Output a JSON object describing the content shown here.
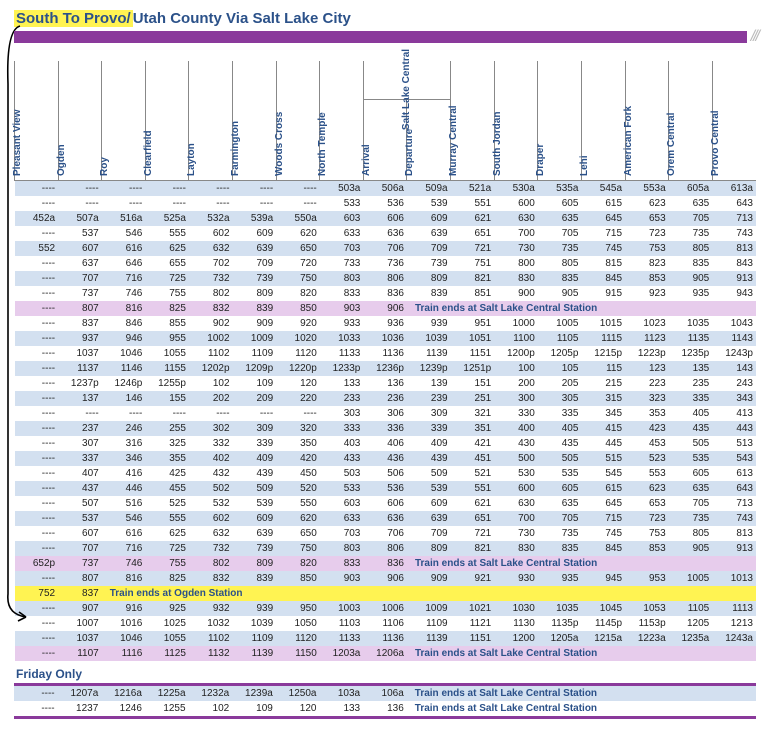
{
  "title_hl": "South To Provo/",
  "title_rest": "Utah County Via Salt Lake City",
  "stations": [
    "Pleasant View",
    "Ogden",
    "Roy",
    "Clearfield",
    "Layton",
    "Farmington",
    "Woods Cross",
    "North Temple",
    "Arrival",
    "Departure",
    "Murray Central",
    "South Jordan",
    "Draper",
    "Lehi",
    "American Fork",
    "Orem Central",
    "Provo Central"
  ],
  "group_label": "Salt Lake Central",
  "note_central": "Train ends at Salt Lake Central Station",
  "note_ogden": "Train ends at Ogden Station",
  "friday_label": "Friday Only",
  "rows": [
    {
      "c": [
        "----",
        "----",
        "----",
        "----",
        "----",
        "----",
        "----",
        "503a",
        "506a",
        "509a",
        "521a",
        "530a",
        "535a",
        "545a",
        "553a",
        "605a",
        "613a"
      ]
    },
    {
      "c": [
        "----",
        "----",
        "----",
        "----",
        "----",
        "----",
        "----",
        "533",
        "536",
        "539",
        "551",
        "600",
        "605",
        "615",
        "623",
        "635",
        "643"
      ]
    },
    {
      "c": [
        "452a",
        "507a",
        "516a",
        "525a",
        "532a",
        "539a",
        "550a",
        "603",
        "606",
        "609",
        "621",
        "630",
        "635",
        "645",
        "653",
        "705",
        "713"
      ]
    },
    {
      "c": [
        "----",
        "537",
        "546",
        "555",
        "602",
        "609",
        "620",
        "633",
        "636",
        "639",
        "651",
        "700",
        "705",
        "715",
        "723",
        "735",
        "743"
      ]
    },
    {
      "c": [
        "552",
        "607",
        "616",
        "625",
        "632",
        "639",
        "650",
        "703",
        "706",
        "709",
        "721",
        "730",
        "735",
        "745",
        "753",
        "805",
        "813"
      ]
    },
    {
      "c": [
        "----",
        "637",
        "646",
        "655",
        "702",
        "709",
        "720",
        "733",
        "736",
        "739",
        "751",
        "800",
        "805",
        "815",
        "823",
        "835",
        "843"
      ]
    },
    {
      "c": [
        "----",
        "707",
        "716",
        "725",
        "732",
        "739",
        "750",
        "803",
        "806",
        "809",
        "821",
        "830",
        "835",
        "845",
        "853",
        "905",
        "913"
      ]
    },
    {
      "c": [
        "----",
        "737",
        "746",
        "755",
        "802",
        "809",
        "820",
        "833",
        "836",
        "839",
        "851",
        "900",
        "905",
        "915",
        "923",
        "935",
        "943"
      ]
    },
    {
      "c": [
        "----",
        "807",
        "816",
        "825",
        "832",
        "839",
        "850",
        "903",
        "906"
      ],
      "note": "central",
      "cls": "purple"
    },
    {
      "c": [
        "----",
        "837",
        "846",
        "855",
        "902",
        "909",
        "920",
        "933",
        "936",
        "939",
        "951",
        "1000",
        "1005",
        "1015",
        "1023",
        "1035",
        "1043"
      ]
    },
    {
      "c": [
        "----",
        "937",
        "946",
        "955",
        "1002",
        "1009",
        "1020",
        "1033",
        "1036",
        "1039",
        "1051",
        "1100",
        "1105",
        "1115",
        "1123",
        "1135",
        "1143"
      ]
    },
    {
      "c": [
        "----",
        "1037",
        "1046",
        "1055",
        "1102",
        "1109",
        "1120",
        "1133",
        "1136",
        "1139",
        "1151",
        "1200p",
        "1205p",
        "1215p",
        "1223p",
        "1235p",
        "1243p"
      ]
    },
    {
      "c": [
        "----",
        "1137",
        "1146",
        "1155",
        "1202p",
        "1209p",
        "1220p",
        "1233p",
        "1236p",
        "1239p",
        "1251p",
        "100",
        "105",
        "115",
        "123",
        "135",
        "143"
      ]
    },
    {
      "c": [
        "----",
        "1237p",
        "1246p",
        "1255p",
        "102",
        "109",
        "120",
        "133",
        "136",
        "139",
        "151",
        "200",
        "205",
        "215",
        "223",
        "235",
        "243"
      ]
    },
    {
      "c": [
        "----",
        "137",
        "146",
        "155",
        "202",
        "209",
        "220",
        "233",
        "236",
        "239",
        "251",
        "300",
        "305",
        "315",
        "323",
        "335",
        "343"
      ]
    },
    {
      "c": [
        "----",
        "----",
        "----",
        "----",
        "----",
        "----",
        "----",
        "303",
        "306",
        "309",
        "321",
        "330",
        "335",
        "345",
        "353",
        "405",
        "413"
      ]
    },
    {
      "c": [
        "----",
        "237",
        "246",
        "255",
        "302",
        "309",
        "320",
        "333",
        "336",
        "339",
        "351",
        "400",
        "405",
        "415",
        "423",
        "435",
        "443"
      ]
    },
    {
      "c": [
        "----",
        "307",
        "316",
        "325",
        "332",
        "339",
        "350",
        "403",
        "406",
        "409",
        "421",
        "430",
        "435",
        "445",
        "453",
        "505",
        "513"
      ]
    },
    {
      "c": [
        "----",
        "337",
        "346",
        "355",
        "402",
        "409",
        "420",
        "433",
        "436",
        "439",
        "451",
        "500",
        "505",
        "515",
        "523",
        "535",
        "543"
      ]
    },
    {
      "c": [
        "----",
        "407",
        "416",
        "425",
        "432",
        "439",
        "450",
        "503",
        "506",
        "509",
        "521",
        "530",
        "535",
        "545",
        "553",
        "605",
        "613"
      ]
    },
    {
      "c": [
        "----",
        "437",
        "446",
        "455",
        "502",
        "509",
        "520",
        "533",
        "536",
        "539",
        "551",
        "600",
        "605",
        "615",
        "623",
        "635",
        "643"
      ]
    },
    {
      "c": [
        "----",
        "507",
        "516",
        "525",
        "532",
        "539",
        "550",
        "603",
        "606",
        "609",
        "621",
        "630",
        "635",
        "645",
        "653",
        "705",
        "713"
      ]
    },
    {
      "c": [
        "----",
        "537",
        "546",
        "555",
        "602",
        "609",
        "620",
        "633",
        "636",
        "639",
        "651",
        "700",
        "705",
        "715",
        "723",
        "735",
        "743"
      ]
    },
    {
      "c": [
        "----",
        "607",
        "616",
        "625",
        "632",
        "639",
        "650",
        "703",
        "706",
        "709",
        "721",
        "730",
        "735",
        "745",
        "753",
        "805",
        "813"
      ]
    },
    {
      "c": [
        "----",
        "707",
        "716",
        "725",
        "732",
        "739",
        "750",
        "803",
        "806",
        "809",
        "821",
        "830",
        "835",
        "845",
        "853",
        "905",
        "913"
      ]
    },
    {
      "c": [
        "652p",
        "737",
        "746",
        "755",
        "802",
        "809",
        "820",
        "833",
        "836"
      ],
      "note": "central",
      "cls": "purple"
    },
    {
      "c": [
        "----",
        "807",
        "816",
        "825",
        "832",
        "839",
        "850",
        "903",
        "906",
        "909",
        "921",
        "930",
        "935",
        "945",
        "953",
        "1005",
        "1013"
      ]
    },
    {
      "c": [
        "752",
        "837"
      ],
      "note": "ogden",
      "cls": "yellow"
    },
    {
      "c": [
        "----",
        "907",
        "916",
        "925",
        "932",
        "939",
        "950",
        "1003",
        "1006",
        "1009",
        "1021",
        "1030",
        "1035",
        "1045",
        "1053",
        "1105",
        "1113"
      ]
    },
    {
      "c": [
        "----",
        "1007",
        "1016",
        "1025",
        "1032",
        "1039",
        "1050",
        "1103",
        "1106",
        "1109",
        "1121",
        "1130",
        "1135p",
        "1145p",
        "1153p",
        "1205",
        "1213"
      ]
    },
    {
      "c": [
        "----",
        "1037",
        "1046",
        "1055",
        "1102",
        "1109",
        "1120",
        "1133",
        "1136",
        "1139",
        "1151",
        "1200",
        "1205a",
        "1215a",
        "1223a",
        "1235a",
        "1243a"
      ]
    },
    {
      "c": [
        "----",
        "1107",
        "1116",
        "1125",
        "1132",
        "1139",
        "1150",
        "1203a",
        "1206a"
      ],
      "note": "central",
      "cls": "purple"
    }
  ],
  "friday_rows": [
    {
      "c": [
        "----",
        "1207a",
        "1216a",
        "1225a",
        "1232a",
        "1239a",
        "1250a",
        "103a",
        "106a"
      ],
      "note": "central"
    },
    {
      "c": [
        "----",
        "1237",
        "1246",
        "1255",
        "102",
        "109",
        "120",
        "133",
        "136"
      ],
      "note": "central"
    }
  ],
  "colors": {
    "purple": "#8a3a9b",
    "blue": "#d3e0f0",
    "highlight": "#fff352",
    "lavender": "#e7ccec",
    "text_blue": "#2b5189"
  }
}
